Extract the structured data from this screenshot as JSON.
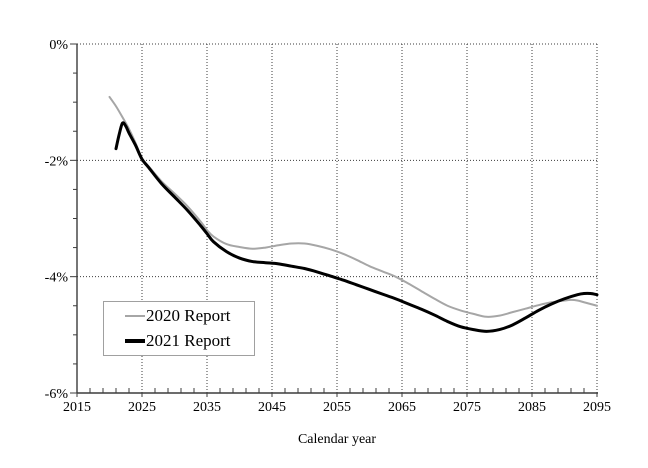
{
  "figure": {
    "background": "#ffffff"
  },
  "chart_data": {
    "type": "line",
    "title": "",
    "xlabel": "Calendar year",
    "ylabel": "",
    "xlim": [
      2015,
      2095
    ],
    "ylim": [
      -6,
      0
    ],
    "x_major_ticks": [
      2015,
      2025,
      2035,
      2045,
      2055,
      2065,
      2075,
      2085,
      2095
    ],
    "x_tick_labels": [
      "2015",
      "2025",
      "2035",
      "2045",
      "2055",
      "2065",
      "2075",
      "2085",
      "2095"
    ],
    "x_minor_step": 2,
    "y_major_ticks": [
      0,
      -2,
      -4,
      -6
    ],
    "y_tick_labels": [
      "0%",
      "-2%",
      "-4%",
      "-6%"
    ],
    "y_minor_step": 0.5,
    "grid": {
      "style": "dotted",
      "color": "#3c3c3c",
      "horizontal_at": [
        0,
        -2,
        -4
      ],
      "vertical_at": [
        2025,
        2035,
        2045,
        2055,
        2065,
        2075,
        2085,
        2095
      ]
    },
    "axis_color": "#3c3c3c",
    "legend": {
      "position": "lower-left",
      "entries": [
        {
          "label": "2020 Report",
          "color": "#a6a6a6"
        },
        {
          "label": "2021 Report",
          "color": "#000000"
        }
      ]
    },
    "series": [
      {
        "name": "2020 Report",
        "color": "#a6a6a6",
        "width": 2,
        "points": [
          [
            2020,
            -0.91
          ],
          [
            2021,
            -1.07
          ],
          [
            2022,
            -1.26
          ],
          [
            2023,
            -1.46
          ],
          [
            2024,
            -1.7
          ],
          [
            2025,
            -1.97
          ],
          [
            2026,
            -2.1
          ],
          [
            2028,
            -2.36
          ],
          [
            2030,
            -2.57
          ],
          [
            2032,
            -2.79
          ],
          [
            2034,
            -3.05
          ],
          [
            2035,
            -3.2
          ],
          [
            2036,
            -3.31
          ],
          [
            2038,
            -3.44
          ],
          [
            2040,
            -3.49
          ],
          [
            2042,
            -3.52
          ],
          [
            2044,
            -3.5
          ],
          [
            2046,
            -3.46
          ],
          [
            2048,
            -3.43
          ],
          [
            2050,
            -3.43
          ],
          [
            2052,
            -3.47
          ],
          [
            2054,
            -3.53
          ],
          [
            2056,
            -3.61
          ],
          [
            2058,
            -3.71
          ],
          [
            2060,
            -3.82
          ],
          [
            2062,
            -3.91
          ],
          [
            2064,
            -4.0
          ],
          [
            2066,
            -4.12
          ],
          [
            2068,
            -4.25
          ],
          [
            2070,
            -4.38
          ],
          [
            2072,
            -4.5
          ],
          [
            2074,
            -4.58
          ],
          [
            2076,
            -4.64
          ],
          [
            2078,
            -4.69
          ],
          [
            2080,
            -4.67
          ],
          [
            2082,
            -4.61
          ],
          [
            2084,
            -4.55
          ],
          [
            2086,
            -4.49
          ],
          [
            2088,
            -4.44
          ],
          [
            2090,
            -4.41
          ],
          [
            2091,
            -4.4
          ],
          [
            2092,
            -4.41
          ],
          [
            2093,
            -4.44
          ],
          [
            2094,
            -4.47
          ],
          [
            2095,
            -4.5
          ]
        ]
      },
      {
        "name": "2021 Report",
        "color": "#000000",
        "width": 3,
        "points": [
          [
            2021,
            -1.8
          ],
          [
            2021.5,
            -1.55
          ],
          [
            2022,
            -1.36
          ],
          [
            2022.5,
            -1.41
          ],
          [
            2023,
            -1.53
          ],
          [
            2024,
            -1.74
          ],
          [
            2025,
            -1.98
          ],
          [
            2026,
            -2.12
          ],
          [
            2028,
            -2.4
          ],
          [
            2030,
            -2.63
          ],
          [
            2032,
            -2.86
          ],
          [
            2034,
            -3.12
          ],
          [
            2035,
            -3.26
          ],
          [
            2036,
            -3.4
          ],
          [
            2038,
            -3.57
          ],
          [
            2040,
            -3.68
          ],
          [
            2042,
            -3.74
          ],
          [
            2044,
            -3.76
          ],
          [
            2046,
            -3.78
          ],
          [
            2048,
            -3.82
          ],
          [
            2050,
            -3.86
          ],
          [
            2052,
            -3.92
          ],
          [
            2054,
            -3.99
          ],
          [
            2056,
            -4.06
          ],
          [
            2058,
            -4.14
          ],
          [
            2060,
            -4.22
          ],
          [
            2062,
            -4.3
          ],
          [
            2064,
            -4.38
          ],
          [
            2066,
            -4.47
          ],
          [
            2068,
            -4.56
          ],
          [
            2070,
            -4.66
          ],
          [
            2072,
            -4.77
          ],
          [
            2074,
            -4.86
          ],
          [
            2076,
            -4.91
          ],
          [
            2078,
            -4.94
          ],
          [
            2080,
            -4.91
          ],
          [
            2082,
            -4.83
          ],
          [
            2084,
            -4.71
          ],
          [
            2086,
            -4.58
          ],
          [
            2088,
            -4.47
          ],
          [
            2090,
            -4.38
          ],
          [
            2092,
            -4.31
          ],
          [
            2093,
            -4.29
          ],
          [
            2094,
            -4.29
          ],
          [
            2095,
            -4.31
          ]
        ]
      }
    ]
  }
}
